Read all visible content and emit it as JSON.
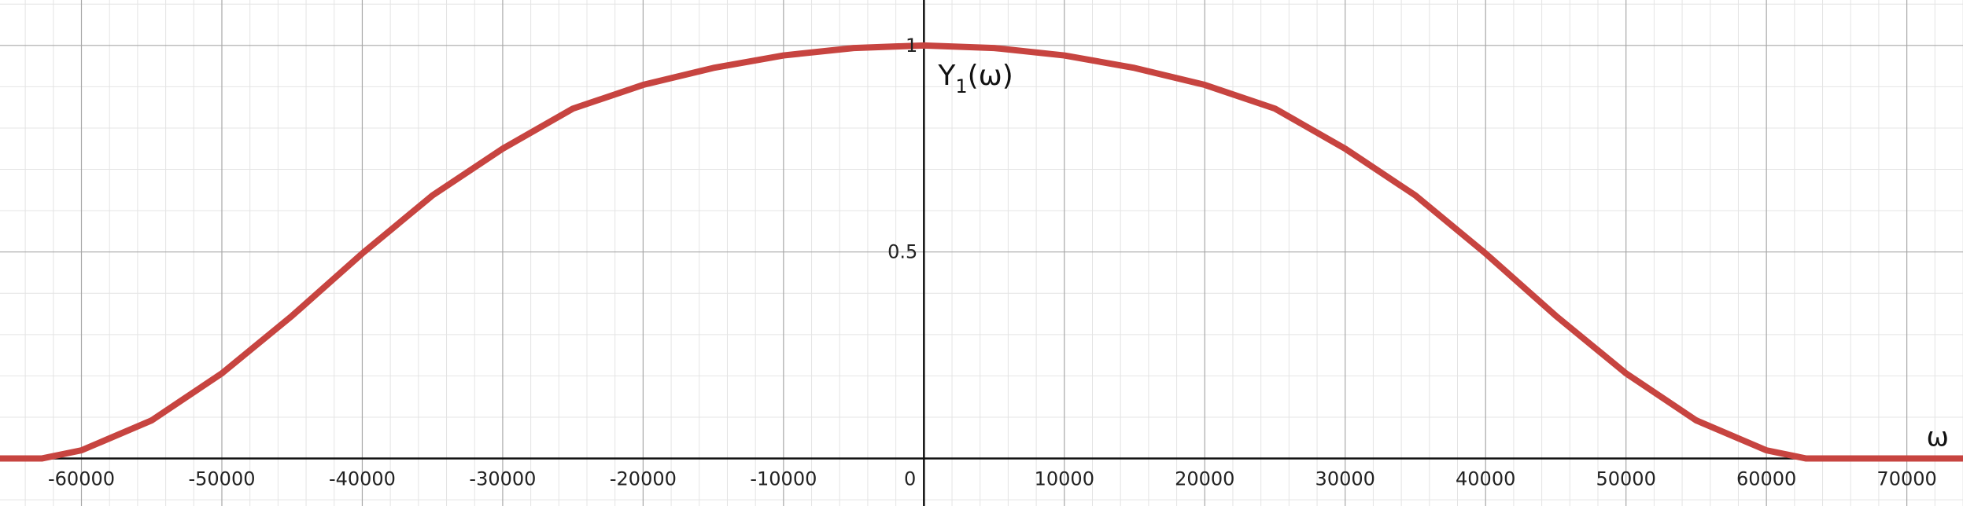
{
  "chart_data": {
    "type": "line",
    "title": "",
    "xlabel": "ω",
    "ylabel": "",
    "xlim": [
      -65800,
      74000
    ],
    "ylim": [
      -0.115,
      1.11
    ],
    "grid": true,
    "x_major_ticks": [
      -60000,
      -50000,
      -40000,
      -30000,
      -20000,
      -10000,
      0,
      10000,
      20000,
      30000,
      40000,
      50000,
      60000,
      70000
    ],
    "x_tick_labels": [
      "-60000",
      "-50000",
      "-40000",
      "-30000",
      "-20000",
      "-10000",
      "0",
      "10000",
      "20000",
      "30000",
      "40000",
      "50000",
      "60000",
      "70000"
    ],
    "y_major_ticks": [
      0.5,
      1
    ],
    "y_tick_labels": [
      "0.5",
      "1"
    ],
    "curve_label": "Y",
    "curve_label_subscript": "1",
    "curve_label_suffix": "(ω)",
    "series": [
      {
        "color": "#c74440",
        "x": [
          -65800,
          -62832,
          -60000,
          -55000,
          -50000,
          -45000,
          -40000,
          -35000,
          -30000,
          -25000,
          -20000,
          -15000,
          -10000,
          -5000,
          0,
          5000,
          10000,
          15000,
          20000,
          25000,
          30000,
          35000,
          40000,
          45000,
          50000,
          55000,
          60000,
          62832,
          74000
        ],
        "y": [
          0,
          0,
          0.0198,
          0.0923,
          0.2061,
          0.3455,
          0.4964,
          0.6369,
          0.75,
          0.847,
          0.9045,
          0.9455,
          0.9758,
          0.9938,
          1.0,
          0.9938,
          0.9758,
          0.9455,
          0.9045,
          0.847,
          0.75,
          0.6369,
          0.4964,
          0.3455,
          0.2061,
          0.0923,
          0.0198,
          0,
          0
        ]
      }
    ]
  }
}
